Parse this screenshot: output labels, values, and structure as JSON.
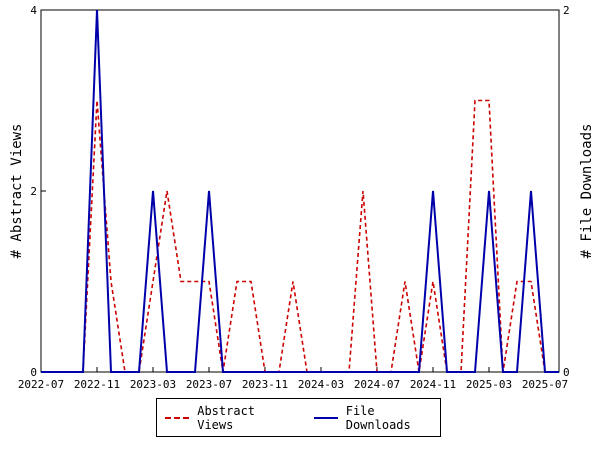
{
  "colors": {
    "views": "#cc0000",
    "downloads": "#0000aa"
  },
  "chart_data": {
    "type": "line",
    "x": [
      "2022-07",
      "2022-08",
      "2022-09",
      "2022-10",
      "2022-11",
      "2022-12",
      "2023-01",
      "2023-02",
      "2023-03",
      "2023-04",
      "2023-05",
      "2023-06",
      "2023-07",
      "2023-08",
      "2023-09",
      "2023-10",
      "2023-11",
      "2023-12",
      "2024-01",
      "2024-02",
      "2024-03",
      "2024-04",
      "2024-05",
      "2024-06",
      "2024-07",
      "2024-08",
      "2024-09",
      "2024-10",
      "2024-11",
      "2024-12",
      "2025-01",
      "2025-02",
      "2025-03",
      "2025-04",
      "2025-05",
      "2025-06",
      "2025-07",
      "2025-08"
    ],
    "x_tick_labels": [
      "2022-07",
      "2022-11",
      "2023-03",
      "2023-07",
      "2023-11",
      "2024-03",
      "2024-07",
      "2024-11",
      "2025-03",
      "2025-07"
    ],
    "y_left_label": "# Abstract Views",
    "y_right_label": "# File Downloads",
    "y_left_ticks": [
      "0",
      "2",
      "4"
    ],
    "y_right_ticks": [
      "0",
      "2"
    ],
    "ylim_left": [
      0,
      4
    ],
    "ylim_right": [
      0,
      2
    ],
    "legend_position": "bottom",
    "series": [
      {
        "name": "Abstract Views",
        "axis": "left",
        "style": "dashed",
        "values": [
          0,
          0,
          0,
          0,
          3,
          1,
          0,
          0,
          1,
          2,
          1,
          1,
          1,
          0,
          1,
          1,
          0,
          0,
          1,
          0,
          0,
          0,
          0,
          2,
          0,
          0,
          1,
          0,
          1,
          0,
          0,
          3,
          3,
          0,
          1,
          1,
          0,
          0
        ]
      },
      {
        "name": "File Downloads",
        "axis": "right",
        "style": "solid",
        "values": [
          0,
          0,
          0,
          0,
          2,
          0,
          0,
          0,
          1,
          0,
          0,
          0,
          1,
          0,
          0,
          0,
          0,
          0,
          0,
          0,
          0,
          0,
          0,
          0,
          0,
          0,
          0,
          0,
          1,
          0,
          0,
          0,
          1,
          0,
          0,
          1,
          0,
          0
        ]
      }
    ]
  }
}
